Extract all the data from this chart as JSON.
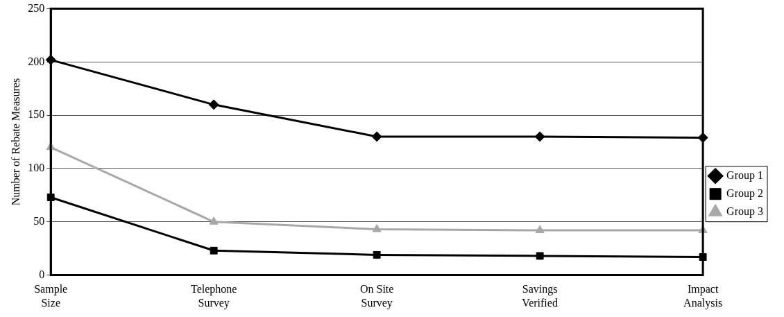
{
  "chart_data": {
    "type": "line",
    "ylabel": "Number of Rebate Measures",
    "categories": [
      "Sample Size",
      "Telephone Survey",
      "On Site Survey",
      "Savings Verified",
      "Impact Analysis"
    ],
    "series": [
      {
        "name": "Group 1",
        "color": "#000000",
        "marker": "diamond",
        "values": [
          202,
          160,
          130,
          130,
          129
        ]
      },
      {
        "name": "Group 2",
        "color": "#000000",
        "marker": "square",
        "values": [
          73,
          23,
          19,
          18,
          17
        ]
      },
      {
        "name": "Group 3",
        "color": "#a8a8a8",
        "marker": "triangle",
        "values": [
          120,
          50,
          43,
          42,
          42
        ]
      }
    ],
    "ylim": [
      0,
      250
    ],
    "yticks": [
      0,
      50,
      100,
      150,
      200,
      250
    ],
    "grid": "y",
    "legend": "right"
  }
}
